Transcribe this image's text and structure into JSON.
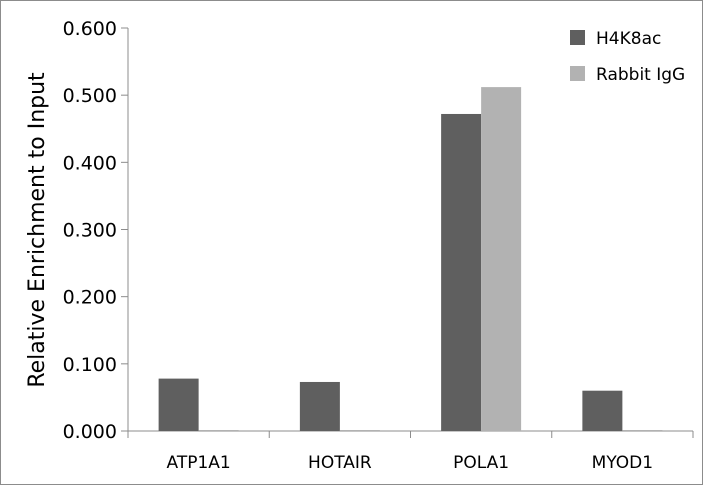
{
  "chart_data": {
    "type": "bar",
    "title": "",
    "xlabel": "",
    "ylabel": "Relative Enrichment to Input",
    "categories": [
      "ATP1A1",
      "HOTAIR",
      "POLA1",
      "MYOD1"
    ],
    "series": [
      {
        "name": "H4K8ac",
        "values": [
          0.078,
          0.073,
          0.472,
          0.06
        ],
        "color": "#5f5f5f"
      },
      {
        "name": "Rabbit IgG",
        "values": [
          0.001,
          0.001,
          0.512,
          0.001
        ],
        "color": "#b2b2b2"
      }
    ],
    "ylim": [
      0,
      0.6
    ],
    "yticks": [
      "0.000",
      "0.100",
      "0.200",
      "0.300",
      "0.400",
      "0.500",
      "0.600"
    ],
    "ytick_values": [
      0,
      0.1,
      0.2,
      0.3,
      0.4,
      0.5,
      0.6
    ],
    "grid": false,
    "legend_position": "top-right"
  }
}
